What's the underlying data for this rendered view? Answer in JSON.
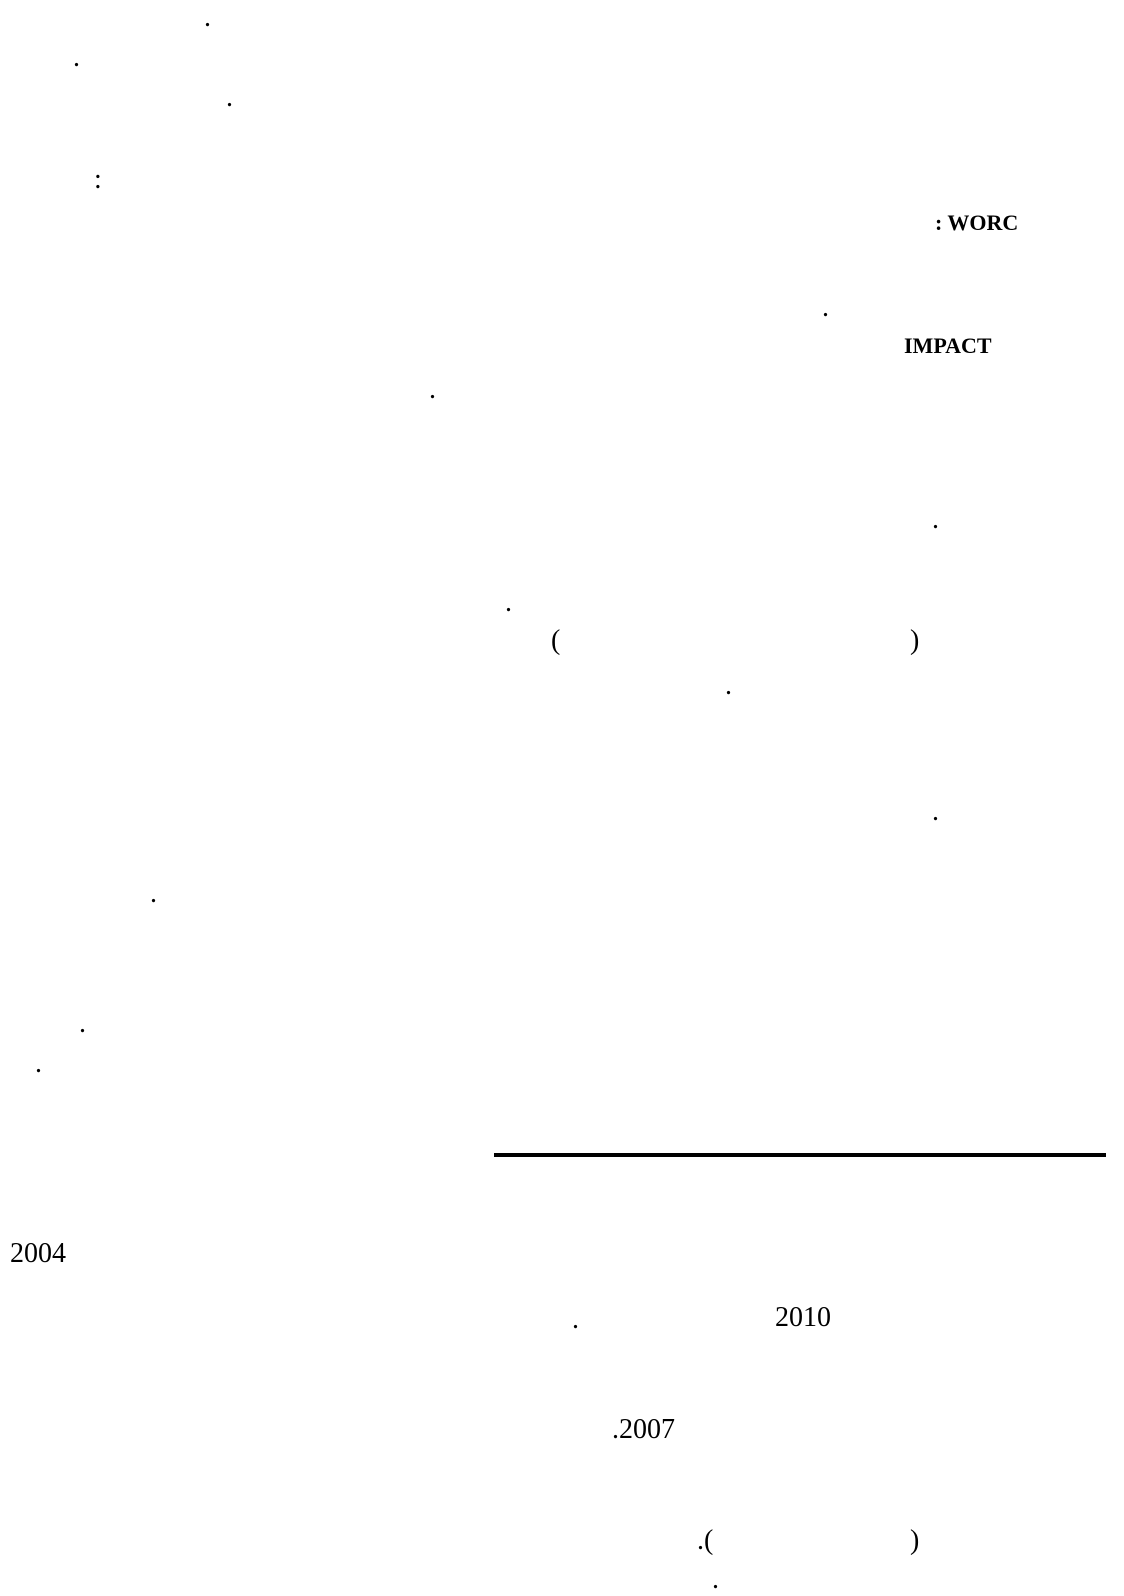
{
  "body": {
    "dot": ".",
    "colon": ":",
    "heading_worc": ": WORC",
    "heading_impact": "IMPACT",
    "paren_open": "(",
    "paren_close": ")"
  },
  "footnotes": {
    "year_2004": "2004",
    "year_2010": "2010",
    "dot": ".",
    "year_2007": ".2007",
    "paren_dot_open": ".(",
    "paren_close": ")"
  }
}
